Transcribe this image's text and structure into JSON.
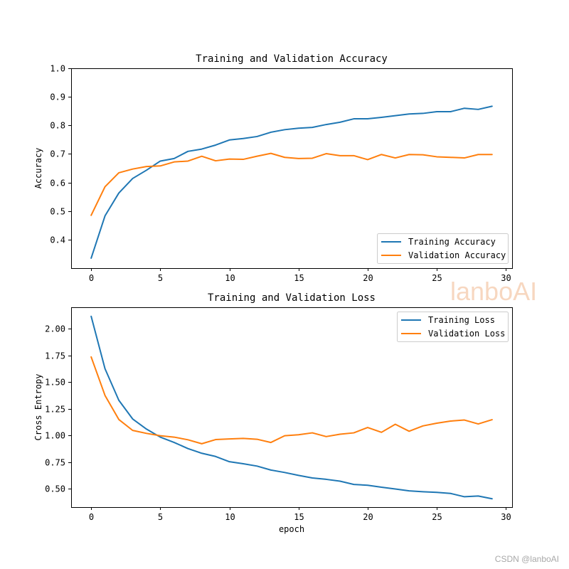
{
  "chart_data": [
    {
      "type": "line",
      "title": "Training and Validation Accuracy",
      "xlabel": "",
      "ylabel": "Accuracy",
      "xlim": [
        -1.45,
        30.45
      ],
      "ylim": [
        0.3,
        1.0
      ],
      "xticks": [
        0,
        5,
        10,
        15,
        20,
        25,
        30
      ],
      "yticks": [
        0.4,
        0.5,
        0.6,
        0.7,
        0.8,
        0.9,
        1.0
      ],
      "ytick_labels": [
        "0.4",
        "0.5",
        "0.6",
        "0.7",
        "0.8",
        "0.9",
        "1.0"
      ],
      "legend_loc": "lower-right",
      "x": [
        0,
        1,
        2,
        3,
        4,
        5,
        6,
        7,
        8,
        9,
        10,
        11,
        12,
        13,
        14,
        15,
        16,
        17,
        18,
        19,
        20,
        21,
        22,
        23,
        24,
        25,
        26,
        27,
        28,
        29
      ],
      "series": [
        {
          "name": "Training Accuracy",
          "color": "#1f77b4",
          "values": [
            0.335,
            0.483,
            0.563,
            0.614,
            0.643,
            0.675,
            0.684,
            0.709,
            0.717,
            0.731,
            0.749,
            0.754,
            0.761,
            0.776,
            0.785,
            0.79,
            0.793,
            0.803,
            0.811,
            0.823,
            0.823,
            0.828,
            0.834,
            0.84,
            0.842,
            0.848,
            0.848,
            0.86,
            0.856,
            0.867
          ]
        },
        {
          "name": "Validation Accuracy",
          "color": "#ff7f0e",
          "values": [
            0.485,
            0.585,
            0.634,
            0.647,
            0.656,
            0.658,
            0.672,
            0.675,
            0.692,
            0.676,
            0.682,
            0.681,
            0.692,
            0.702,
            0.688,
            0.684,
            0.685,
            0.701,
            0.694,
            0.694,
            0.68,
            0.698,
            0.686,
            0.698,
            0.697,
            0.69,
            0.688,
            0.686,
            0.698,
            0.698
          ]
        }
      ]
    },
    {
      "type": "line",
      "title": "Training and Validation Loss",
      "xlabel": "epoch",
      "ylabel": "Cross Entropy",
      "xlim": [
        -1.45,
        30.45
      ],
      "ylim": [
        0.33,
        2.2
      ],
      "xticks": [
        0,
        5,
        10,
        15,
        20,
        25,
        30
      ],
      "yticks": [
        0.5,
        0.75,
        1.0,
        1.25,
        1.5,
        1.75,
        2.0
      ],
      "ytick_labels": [
        "0.50",
        "0.75",
        "1.00",
        "1.25",
        "1.50",
        "1.75",
        "2.00"
      ],
      "legend_loc": "upper-right",
      "x": [
        0,
        1,
        2,
        3,
        4,
        5,
        6,
        7,
        8,
        9,
        10,
        11,
        12,
        13,
        14,
        15,
        16,
        17,
        18,
        19,
        20,
        21,
        22,
        23,
        24,
        25,
        26,
        27,
        28,
        29
      ],
      "series": [
        {
          "name": "Training Loss",
          "color": "#1f77b4",
          "values": [
            2.115,
            1.625,
            1.33,
            1.155,
            1.06,
            0.985,
            0.935,
            0.878,
            0.834,
            0.804,
            0.755,
            0.736,
            0.714,
            0.677,
            0.654,
            0.627,
            0.603,
            0.59,
            0.573,
            0.542,
            0.535,
            0.516,
            0.5,
            0.482,
            0.474,
            0.468,
            0.458,
            0.427,
            0.434,
            0.408
          ]
        },
        {
          "name": "Validation Loss",
          "color": "#ff7f0e",
          "values": [
            1.735,
            1.375,
            1.15,
            1.048,
            1.02,
            0.998,
            0.985,
            0.96,
            0.923,
            0.962,
            0.968,
            0.973,
            0.965,
            0.935,
            0.998,
            1.007,
            1.025,
            0.99,
            1.012,
            1.025,
            1.075,
            1.03,
            1.105,
            1.04,
            1.09,
            1.115,
            1.135,
            1.145,
            1.108,
            1.148
          ]
        }
      ]
    }
  ],
  "watermark": "lanboAI",
  "credit": "CSDN @lanboAI"
}
